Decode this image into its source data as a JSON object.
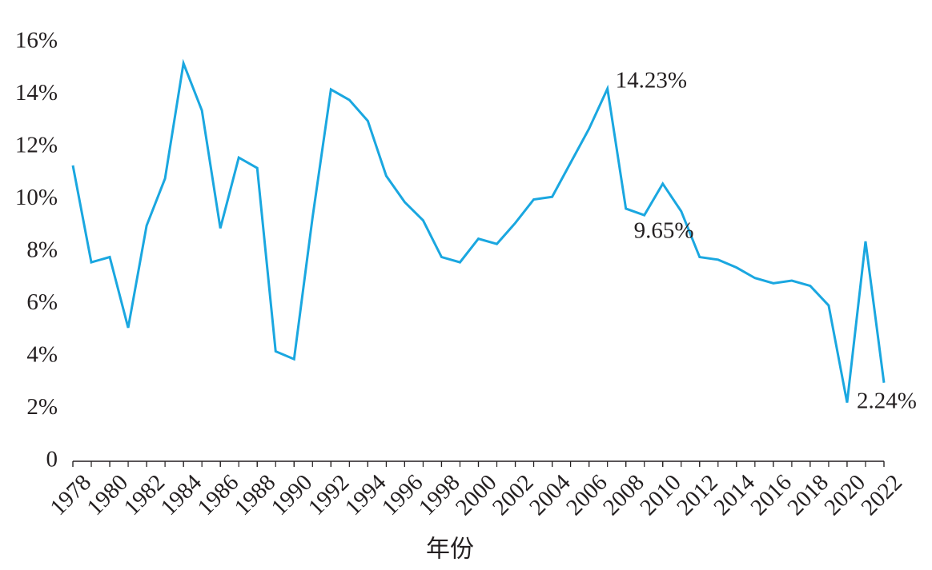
{
  "chart_data": {
    "type": "line",
    "x": [
      1978,
      1979,
      1980,
      1981,
      1982,
      1983,
      1984,
      1985,
      1986,
      1987,
      1988,
      1989,
      1990,
      1991,
      1992,
      1993,
      1994,
      1995,
      1996,
      1997,
      1998,
      1999,
      2000,
      2001,
      2002,
      2003,
      2004,
      2005,
      2006,
      2007,
      2008,
      2009,
      2010,
      2011,
      2012,
      2013,
      2014,
      2015,
      2016,
      2017,
      2018,
      2019,
      2020,
      2021,
      2022
    ],
    "series": [
      {
        "color": "#1aa7e0",
        "values": [
          11.3,
          7.6,
          7.8,
          5.1,
          9.0,
          10.8,
          15.2,
          13.4,
          8.9,
          11.6,
          11.2,
          4.2,
          3.9,
          9.3,
          14.2,
          13.8,
          13.0,
          10.9,
          9.9,
          9.2,
          7.8,
          7.6,
          8.5,
          8.3,
          9.1,
          10.0,
          10.1,
          11.4,
          12.7,
          14.23,
          9.65,
          9.4,
          10.6,
          9.55,
          7.8,
          7.7,
          7.4,
          7.0,
          6.8,
          6.9,
          6.7,
          5.95,
          2.24,
          8.4,
          3.0
        ],
        "value_labels": [
          null,
          null,
          null,
          null,
          null,
          null,
          null,
          null,
          null,
          null,
          null,
          null,
          null,
          null,
          null,
          null,
          null,
          null,
          null,
          null,
          null,
          null,
          null,
          null,
          null,
          null,
          null,
          null,
          null,
          "14.23%",
          "9.65%",
          null,
          null,
          null,
          null,
          null,
          null,
          null,
          null,
          null,
          null,
          null,
          "2.24%",
          null,
          null
        ]
      }
    ],
    "xlim": [
      1978,
      2022
    ],
    "xticks": [
      1978,
      1980,
      1982,
      1984,
      1986,
      1988,
      1990,
      1992,
      1994,
      1996,
      1998,
      2000,
      2002,
      2004,
      2006,
      2008,
      2010,
      2012,
      2014,
      2016,
      2018,
      2020,
      2022
    ],
    "ylim": [
      0,
      16
    ],
    "yticks": [
      0,
      {
        "value": 2,
        "label": "2%"
      },
      {
        "value": 4,
        "label": "4%"
      },
      {
        "value": 6,
        "label": "6%"
      },
      {
        "value": 8,
        "label": "8%"
      },
      {
        "value": 10,
        "label": "10%"
      },
      {
        "value": 12,
        "label": "12%"
      },
      {
        "value": 14,
        "label": "14%"
      },
      {
        "value": 16,
        "label": "16%"
      }
    ],
    "xlabel": "年份"
  }
}
